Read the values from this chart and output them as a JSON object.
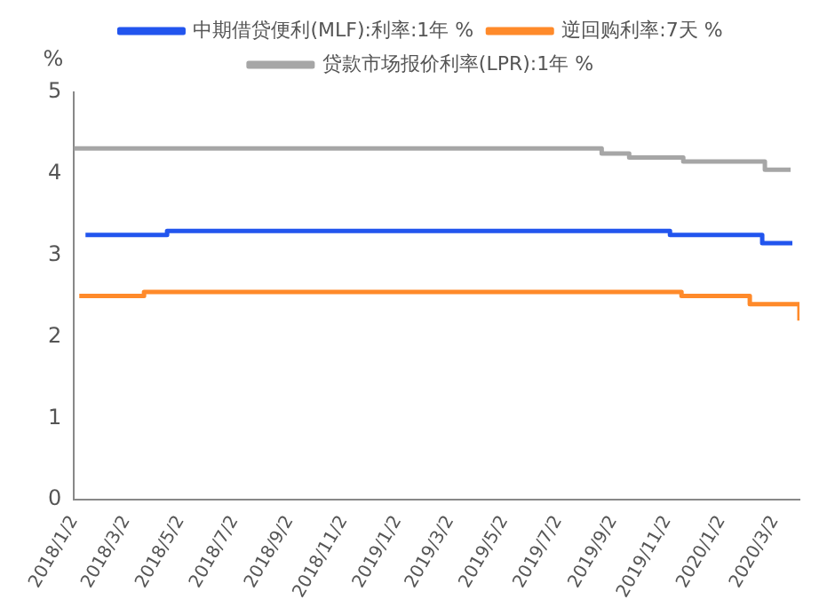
{
  "chart_data": {
    "type": "step",
    "ylabel": "%",
    "legend": "top",
    "grid": false,
    "xlim": [
      "2018-01-02",
      "2020-03-30"
    ],
    "xticks": [
      {
        "value": "2018-01-02",
        "label": "2018/1/2"
      },
      {
        "value": "2018-03-02",
        "label": "2018/3/2"
      },
      {
        "value": "2018-05-02",
        "label": "2018/5/2"
      },
      {
        "value": "2018-07-02",
        "label": "2018/7/2"
      },
      {
        "value": "2018-09-02",
        "label": "2018/9/2"
      },
      {
        "value": "2018-11-02",
        "label": "2018/11/2"
      },
      {
        "value": "2019-01-02",
        "label": "2019/1/2"
      },
      {
        "value": "2019-03-02",
        "label": "2019/3/2"
      },
      {
        "value": "2019-05-02",
        "label": "2019/5/2"
      },
      {
        "value": "2019-07-02",
        "label": "2019/7/2"
      },
      {
        "value": "2019-09-02",
        "label": "2019/9/2"
      },
      {
        "value": "2019-11-02",
        "label": "2019/11/2"
      },
      {
        "value": "2020-01-02",
        "label": "2020/1/2"
      },
      {
        "value": "2020-03-02",
        "label": "2020/3/2"
      }
    ],
    "ylim": [
      0,
      5
    ],
    "yticks": [
      0,
      1,
      2,
      3,
      4,
      5
    ],
    "series": [
      {
        "name": "中期借贷便利(MLF):利率:1年 %",
        "color": "#2255ee",
        "x": [
          "2018-01-15",
          "2018-04-17",
          "2019-11-05",
          "2020-02-17",
          "2020-03-22"
        ],
        "values": [
          3.25,
          3.3,
          3.25,
          3.15,
          3.15
        ]
      },
      {
        "name": "逆回购利率:7天 %",
        "color": "#ff8a2a",
        "x": [
          "2018-01-08",
          "2018-03-22",
          "2019-11-18",
          "2020-02-03",
          "2020-03-30"
        ],
        "values": [
          2.5,
          2.55,
          2.5,
          2.4,
          2.2
        ]
      },
      {
        "name": "贷款市场报价利率(LPR):1年 %",
        "color": "#a6a6a6",
        "x": [
          "2018-01-02",
          "2019-08-20",
          "2019-09-20",
          "2019-11-20",
          "2020-02-20",
          "2020-03-20"
        ],
        "values": [
          4.31,
          4.25,
          4.2,
          4.15,
          4.05,
          4.05
        ]
      }
    ]
  }
}
